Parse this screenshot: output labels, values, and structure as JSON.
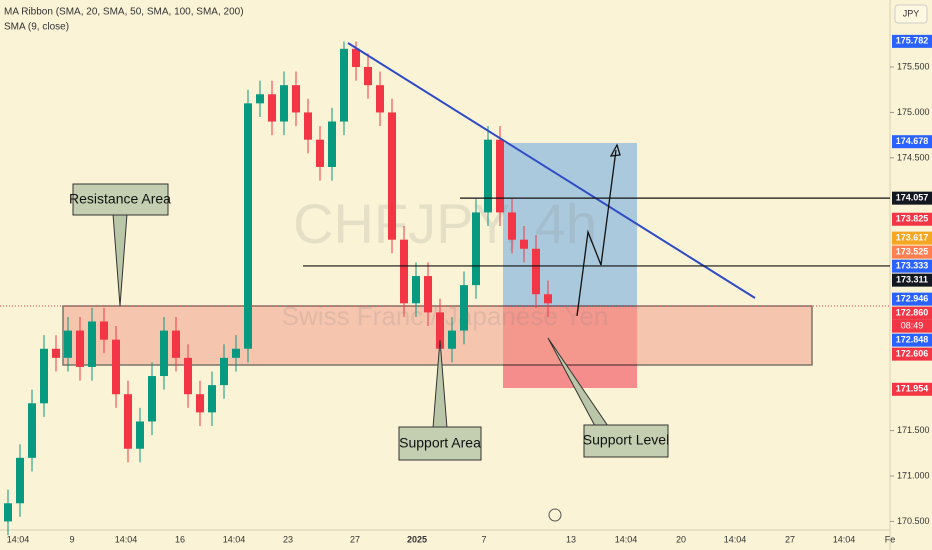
{
  "chart_data": {
    "type": "candlestick",
    "title": "MA Ribbon (SMA, 20, SMA, 50, SMA, 100, SMA, 200)",
    "subtitle": "SMA (9, close)",
    "currency": "JPY",
    "watermark": "CHFJPY, 4h",
    "watermark_subtitle": "Swiss Franc / Japanese Yen",
    "annotations": [
      "Resistance Area",
      "Support Area",
      "Support Level"
    ],
    "up_color": "#089981",
    "down_color": "#f23645",
    "open": [
      170.5,
      170.7,
      171.2,
      171.8,
      172.4,
      172.3,
      172.6,
      172.2,
      172.7,
      172.5,
      171.9,
      171.3,
      171.6,
      172.1,
      172.6,
      172.3,
      171.9,
      171.7,
      172.0,
      172.3,
      172.4,
      175.1,
      175.2,
      174.9,
      175.3,
      175.0,
      174.7,
      174.4,
      174.9,
      175.7,
      175.5,
      175.3,
      175.0,
      173.6,
      172.9,
      173.2,
      172.8,
      172.4,
      172.6,
      173.1,
      173.9,
      174.7,
      173.9,
      173.6,
      173.5,
      173.0
    ],
    "high": [
      170.85,
      171.35,
      171.95,
      172.55,
      172.55,
      172.75,
      172.75,
      172.85,
      172.85,
      172.65,
      172.05,
      171.75,
      172.25,
      172.75,
      172.75,
      172.45,
      172.05,
      172.15,
      172.45,
      172.55,
      175.25,
      175.35,
      175.35,
      175.45,
      175.45,
      175.15,
      174.85,
      175.05,
      175.78,
      175.78,
      175.65,
      175.45,
      175.15,
      173.75,
      173.35,
      173.35,
      172.95,
      172.75,
      173.25,
      174.05,
      174.85,
      174.85,
      174.05,
      173.75,
      173.65,
      173.15
    ],
    "low": [
      170.35,
      170.55,
      171.05,
      171.65,
      172.15,
      172.15,
      172.05,
      172.05,
      172.35,
      171.75,
      171.15,
      171.15,
      171.45,
      171.95,
      172.15,
      171.75,
      171.55,
      171.55,
      171.85,
      172.15,
      172.25,
      174.95,
      174.75,
      174.75,
      174.85,
      174.55,
      174.25,
      174.25,
      174.75,
      175.35,
      175.15,
      174.85,
      173.45,
      172.75,
      172.75,
      172.65,
      172.25,
      172.25,
      172.45,
      172.95,
      173.75,
      173.75,
      173.45,
      173.35,
      172.85,
      172.75
    ],
    "close": [
      170.7,
      171.2,
      171.8,
      172.4,
      172.3,
      172.6,
      172.2,
      172.7,
      172.5,
      171.9,
      171.3,
      171.6,
      172.1,
      172.6,
      172.3,
      171.9,
      171.7,
      172.0,
      172.3,
      172.4,
      175.1,
      175.2,
      174.9,
      175.3,
      175.0,
      174.7,
      174.4,
      174.9,
      175.7,
      175.5,
      175.3,
      175.0,
      173.6,
      172.9,
      173.2,
      172.8,
      172.4,
      172.6,
      173.1,
      173.9,
      174.7,
      173.9,
      173.6,
      173.5,
      173.0,
      172.9
    ],
    "ylim": [
      170.406,
      176.237
    ],
    "yticks": [
      {
        "value": 175.5,
        "label": "175.500"
      },
      {
        "value": 175.0,
        "label": "175.000"
      },
      {
        "value": 174.5,
        "label": "174.500"
      },
      {
        "value": 171.5,
        "label": "171.500"
      },
      {
        "value": 171.0,
        "label": "171.000"
      },
      {
        "value": 170.5,
        "label": "170.500"
      }
    ],
    "x_labels": [
      "14:04",
      "9",
      "14:04",
      "16",
      "14:04",
      "23",
      "27",
      "2025",
      "7",
      "13",
      "14:04",
      "20",
      "14:04",
      "27",
      "14:04",
      "Fe"
    ],
    "price_labels": [
      {
        "value": 175.782,
        "label": "175.782",
        "color": "#2962ff"
      },
      {
        "value": 174.678,
        "label": "174.678",
        "color": "#2962ff"
      },
      {
        "value": 174.057,
        "label": "174.057",
        "color": "#131722",
        "line": true
      },
      {
        "value": 173.825,
        "label": "173.825",
        "color": "#f23645"
      },
      {
        "value": 173.617,
        "label": "173.617",
        "color": "#f5a623"
      },
      {
        "value": 173.525,
        "label": "173.525",
        "color": "#ff7f50"
      },
      {
        "value": 173.333,
        "label": "173.333",
        "color": "#2962ff"
      },
      {
        "value": 173.311,
        "label": "173.311",
        "color": "#131722",
        "line": true
      },
      {
        "value": 172.946,
        "label": "172.946",
        "color": "#2962ff"
      },
      {
        "value": 172.86,
        "label": "172.860",
        "color": "#f23645",
        "countdown": "08:49"
      },
      {
        "value": 172.848,
        "label": "172.848",
        "color": "#2962ff"
      },
      {
        "value": 172.606,
        "label": "172.606",
        "color": "#f23645"
      },
      {
        "value": 171.954,
        "label": "171.954",
        "color": "#f23645"
      }
    ]
  }
}
